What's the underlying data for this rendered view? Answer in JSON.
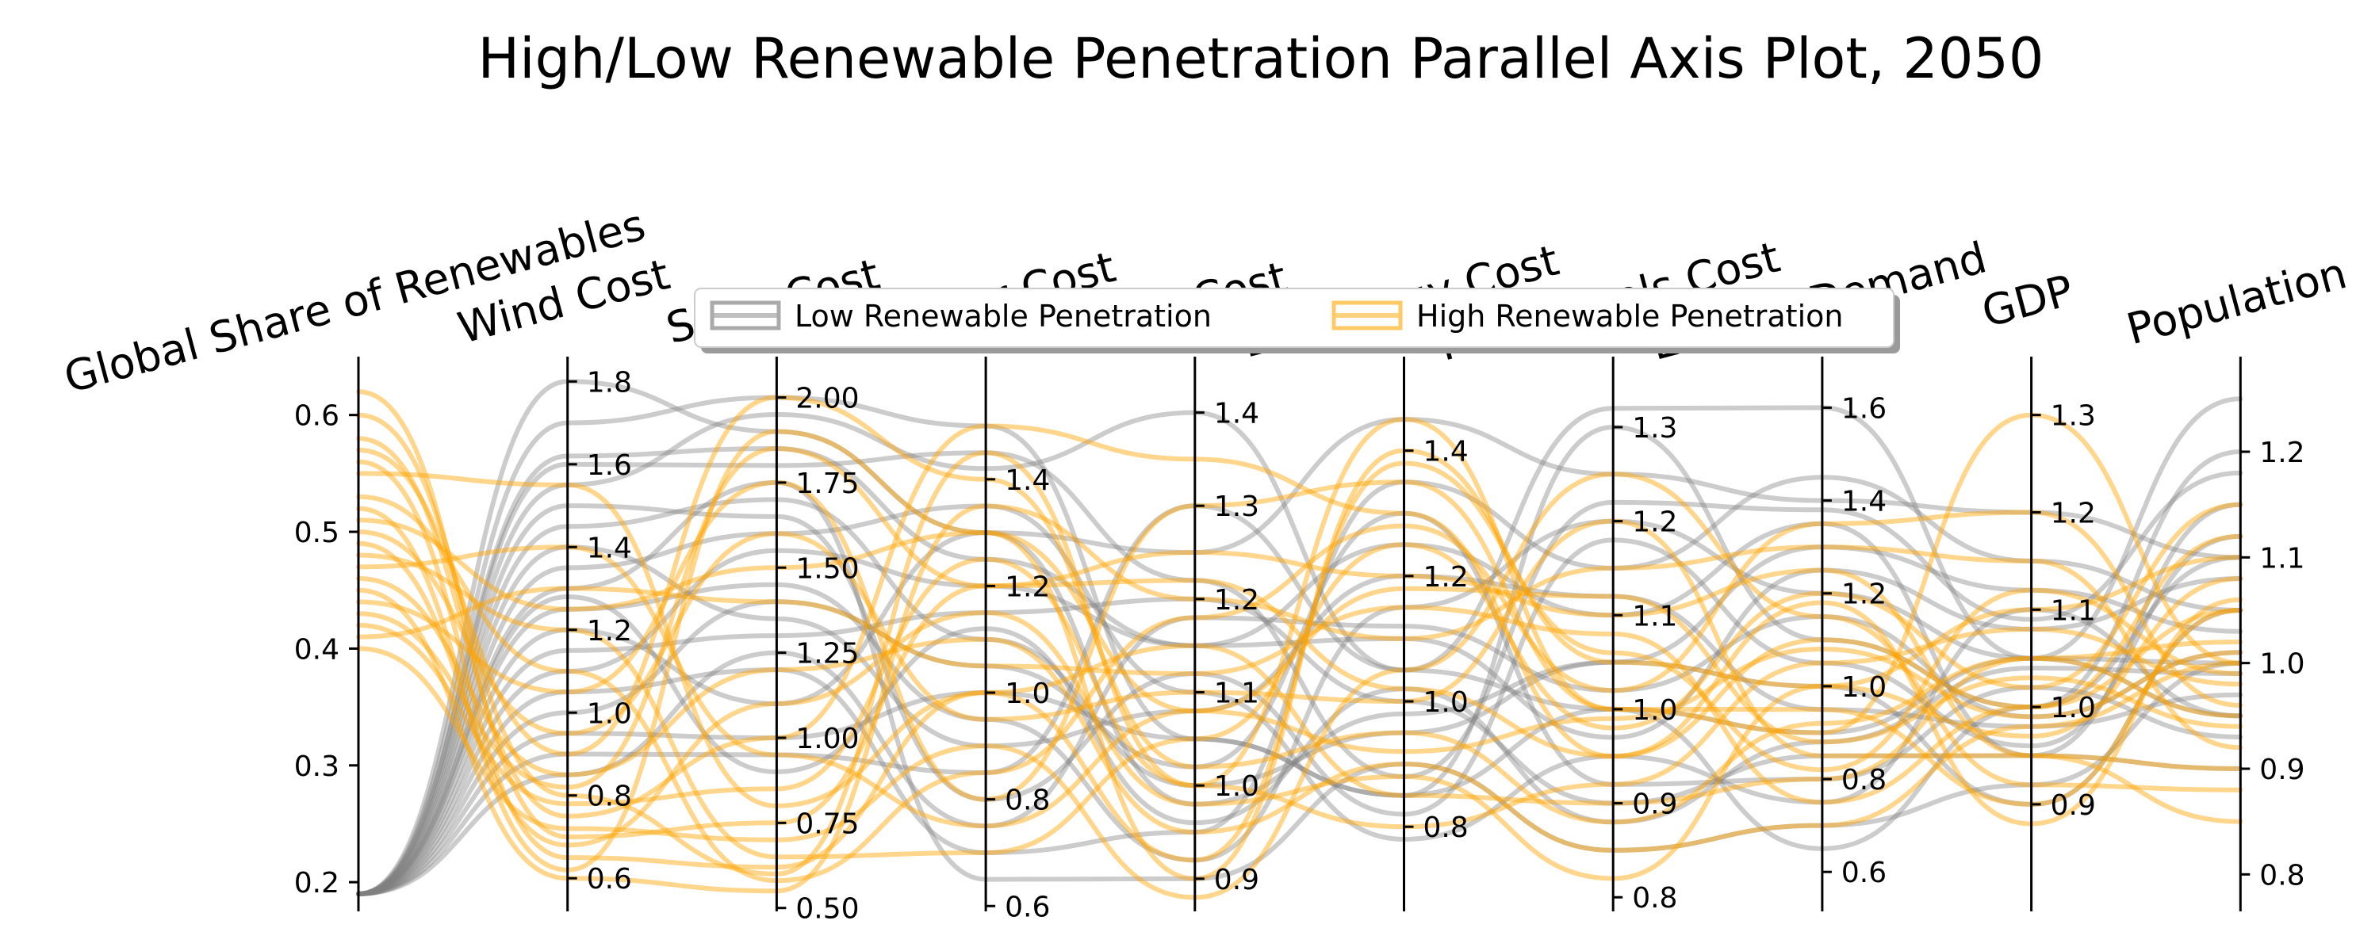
{
  "chart_data": {
    "type": "parallel-coordinates",
    "title": "High/Low Renewable Penetration Parallel Axis Plot, 2050",
    "axes": [
      {
        "name": "Global Share of Renewables",
        "range": [
          0.175,
          0.65
        ],
        "ticks": [
          0.2,
          0.3,
          0.4,
          0.5,
          0.6
        ],
        "tick_labels": [
          "0.2",
          "0.3",
          "0.4",
          "0.5",
          "0.6"
        ],
        "tick_side": "left"
      },
      {
        "name": "Wind Cost",
        "range": [
          0.52,
          1.86
        ],
        "ticks": [
          0.6,
          0.8,
          1.0,
          1.2,
          1.4,
          1.6,
          1.8
        ],
        "tick_labels": [
          "0.6",
          "0.8",
          "1.0",
          "1.2",
          "1.4",
          "1.6",
          "1.8"
        ],
        "tick_side": "right"
      },
      {
        "name": "Solar Cost",
        "range": [
          0.49,
          2.12
        ],
        "ticks": [
          0.5,
          0.75,
          1.0,
          1.25,
          1.5,
          1.75,
          2.0
        ],
        "tick_labels": [
          "0.50",
          "0.75",
          "1.00",
          "1.25",
          "1.50",
          "1.75",
          "2.00"
        ],
        "tick_side": "right"
      },
      {
        "name": "Nuclear Cost",
        "range": [
          0.59,
          1.63
        ],
        "ticks": [
          0.6,
          0.8,
          1.0,
          1.2,
          1.4
        ],
        "tick_labels": [
          "0.6",
          "0.8",
          "1.0",
          "1.2",
          "1.4"
        ],
        "tick_side": "right"
      },
      {
        "name": "CCS Cost",
        "range": [
          0.865,
          1.46
        ],
        "ticks": [
          0.9,
          1.0,
          1.1,
          1.2,
          1.3,
          1.4
        ],
        "tick_labels": [
          "0.9",
          "1.0",
          "1.1",
          "1.2",
          "1.3",
          "1.4"
        ],
        "tick_side": "right"
      },
      {
        "name": "Bioenergy Cost",
        "range": [
          0.665,
          1.55
        ],
        "ticks": [
          0.8,
          1.0,
          1.2,
          1.4
        ],
        "tick_labels": [
          "0.8",
          "1.0",
          "1.2",
          "1.4"
        ],
        "tick_side": "right"
      },
      {
        "name": "Fossil Fuels Cost",
        "range": [
          0.785,
          1.375
        ],
        "ticks": [
          0.8,
          0.9,
          1.0,
          1.1,
          1.2,
          1.3
        ],
        "tick_labels": [
          "0.8",
          "0.9",
          "1.0",
          "1.1",
          "1.2",
          "1.3"
        ],
        "tick_side": "right"
      },
      {
        "name": "Energy Demand",
        "range": [
          0.515,
          1.71
        ],
        "ticks": [
          0.6,
          0.8,
          1.0,
          1.2,
          1.4,
          1.6
        ],
        "tick_labels": [
          "0.6",
          "0.8",
          "1.0",
          "1.2",
          "1.4",
          "1.6"
        ],
        "tick_side": "right"
      },
      {
        "name": "GDP",
        "range": [
          0.79,
          1.36
        ],
        "ticks": [
          0.9,
          1.0,
          1.1,
          1.2,
          1.3
        ],
        "tick_labels": [
          "0.9",
          "1.0",
          "1.1",
          "1.2",
          "1.3"
        ],
        "tick_side": "right"
      },
      {
        "name": "Population",
        "range": [
          0.765,
          1.29
        ],
        "ticks": [
          0.8,
          0.9,
          1.0,
          1.1,
          1.2
        ],
        "tick_labels": [
          "0.8",
          "0.9",
          "1.0",
          "1.1",
          "1.2"
        ],
        "tick_side": "right"
      }
    ],
    "series": [
      {
        "name": "Low Renewable Penetration",
        "color": "#808080",
        "opacity": 0.4,
        "samples": [
          [
            0.19,
            1.55,
            1.95,
            1.42,
            1.4,
            1.05,
            1.32,
            1.6,
            1.05,
            1.25
          ],
          [
            0.19,
            1.8,
            1.9,
            1.3,
            1.25,
            1.45,
            1.25,
            1.4,
            1.2,
            1.1
          ],
          [
            0.19,
            1.7,
            2.0,
            1.5,
            1.05,
            0.85,
            1.0,
            0.65,
            1.0,
            1.2
          ],
          [
            0.19,
            1.62,
            1.85,
            1.25,
            1.15,
            1.25,
            1.1,
            1.35,
            0.95,
            1.15
          ],
          [
            0.19,
            1.45,
            1.7,
            1.1,
            1.0,
            0.95,
            1.05,
            1.0,
            0.9,
            1.05
          ],
          [
            0.19,
            1.35,
            1.6,
            1.35,
            1.1,
            0.78,
            0.95,
            0.75,
            1.1,
            0.95
          ],
          [
            0.19,
            1.25,
            1.45,
            0.95,
            0.92,
            1.15,
            1.2,
            1.2,
            1.05,
            1.0
          ],
          [
            0.19,
            1.15,
            1.3,
            1.15,
            1.2,
            1.0,
            0.9,
            0.85,
            0.95,
            0.9
          ],
          [
            0.19,
            1.05,
            1.2,
            0.7,
            0.95,
            1.35,
            1.15,
            1.45,
            1.15,
            1.05
          ],
          [
            0.19,
            0.95,
            1.0,
            1.0,
            1.05,
            0.85,
            1.3,
            1.1,
            1.0,
            1.1
          ],
          [
            0.19,
            0.9,
            0.95,
            0.85,
            1.3,
            1.05,
            1.0,
            0.9,
            1.05,
            0.95
          ],
          [
            0.19,
            1.3,
            1.75,
            0.65,
            0.9,
            0.9,
            0.85,
            0.7,
            0.92,
            1.0
          ],
          [
            0.19,
            1.1,
            1.55,
            1.2,
            1.15,
            1.1,
            0.97,
            1.25,
            1.08,
            1.08
          ],
          [
            0.19,
            1.4,
            1.35,
            0.9,
            1.08,
            1.2,
            1.12,
            0.95,
            0.98,
            0.97
          ],
          [
            0.19,
            1.2,
            1.1,
            1.3,
            0.98,
            0.98,
            1.05,
            1.3,
            1.12,
            1.03
          ],
          [
            0.19,
            1.5,
            1.65,
            0.8,
            1.12,
            0.82,
            1.18,
            1.05,
            0.96,
            1.12
          ],
          [
            0.19,
            1.0,
            1.4,
            1.05,
            1.02,
            1.3,
            0.92,
            0.8,
            1.02,
            0.93
          ],
          [
            0.19,
            1.6,
            1.8,
            1.45,
            1.22,
            0.88,
            1.22,
            1.38,
            1.09,
            1.18
          ],
          [
            0.19,
            0.85,
            1.25,
            0.75,
            1.18,
            1.12,
            1.02,
            1.15,
            0.99,
            1.01
          ],
          [
            0.19,
            1.28,
            0.9,
            1.12,
            0.96,
            1.02,
            0.88,
            0.88,
            1.04,
            0.99
          ]
        ]
      },
      {
        "name": "High Renewable Penetration",
        "color": "#FFA500",
        "opacity": 0.45,
        "samples": [
          [
            0.6,
            0.8,
            0.6,
            1.45,
            1.0,
            1.45,
            1.0,
            0.9,
            1.3,
            1.0
          ],
          [
            0.62,
            0.7,
            0.75,
            1.2,
            1.25,
            1.2,
            1.1,
            1.25,
            0.95,
            0.9
          ],
          [
            0.58,
            0.75,
            1.0,
            1.5,
            1.35,
            1.3,
            0.95,
            1.1,
            1.0,
            1.05
          ],
          [
            0.55,
            1.55,
            0.8,
            1.0,
            1.15,
            0.85,
            0.9,
            0.8,
            1.05,
            0.95
          ],
          [
            0.52,
            0.62,
            1.9,
            1.3,
            0.9,
            1.4,
            1.05,
            1.0,
            1.1,
            1.1
          ],
          [
            0.5,
            0.95,
            1.6,
            0.95,
            1.1,
            1.0,
            1.2,
            0.85,
            0.95,
            0.85
          ],
          [
            0.48,
            1.2,
            0.65,
            0.7,
            1.05,
            1.25,
            0.98,
            1.2,
            1.02,
            1.15
          ],
          [
            0.46,
            0.85,
            1.2,
            1.1,
            0.95,
            0.9,
            0.85,
            0.7,
            0.98,
            1.0
          ],
          [
            0.45,
            0.6,
            0.55,
            1.35,
            1.2,
            1.1,
            1.15,
            1.3,
            1.15,
            0.92
          ],
          [
            0.44,
            1.05,
            1.75,
            0.8,
            1.3,
            1.35,
            1.0,
            0.95,
            0.9,
            1.05
          ],
          [
            0.42,
            0.78,
            0.85,
            1.25,
            1.0,
            0.8,
            0.92,
            1.05,
            1.08,
            0.98
          ],
          [
            0.41,
            1.3,
            1.4,
            1.05,
            1.12,
            1.15,
            1.08,
            0.75,
            1.0,
            1.12
          ],
          [
            0.4,
            0.72,
            0.7,
            0.9,
            0.88,
            1.05,
            1.25,
            1.15,
            0.92,
            0.88
          ],
          [
            0.57,
            0.9,
            2.0,
            1.4,
            1.02,
            0.95,
            0.88,
            0.92,
            1.05,
            1.02
          ],
          [
            0.53,
            1.1,
            0.58,
            0.85,
            1.18,
            1.28,
            1.02,
            1.35,
            1.2,
            0.96
          ],
          [
            0.49,
            0.68,
            1.1,
            1.15,
            0.98,
            0.88,
            0.82,
            1.0,
            0.97,
            1.08
          ],
          [
            0.47,
            1.4,
            0.95,
            0.75,
            1.08,
            1.18,
            1.12,
            0.88,
            1.03,
            0.94
          ],
          [
            0.43,
            0.82,
            1.85,
            1.2,
            1.22,
            1.02,
            0.95,
            1.18,
            0.88,
            1.06
          ],
          [
            0.56,
            0.65,
            0.62,
            1.0,
            0.92,
            1.38,
            1.06,
            0.82,
            1.12,
            0.99
          ],
          [
            0.51,
            1.25,
            1.5,
            1.3,
            1.08,
            0.92,
            0.99,
            1.08,
            0.99,
            1.01
          ]
        ]
      }
    ],
    "legend": {
      "placement": "top-center",
      "entries": [
        "Low Renewable Penetration",
        "High Renewable Penetration"
      ]
    },
    "grid": false
  }
}
